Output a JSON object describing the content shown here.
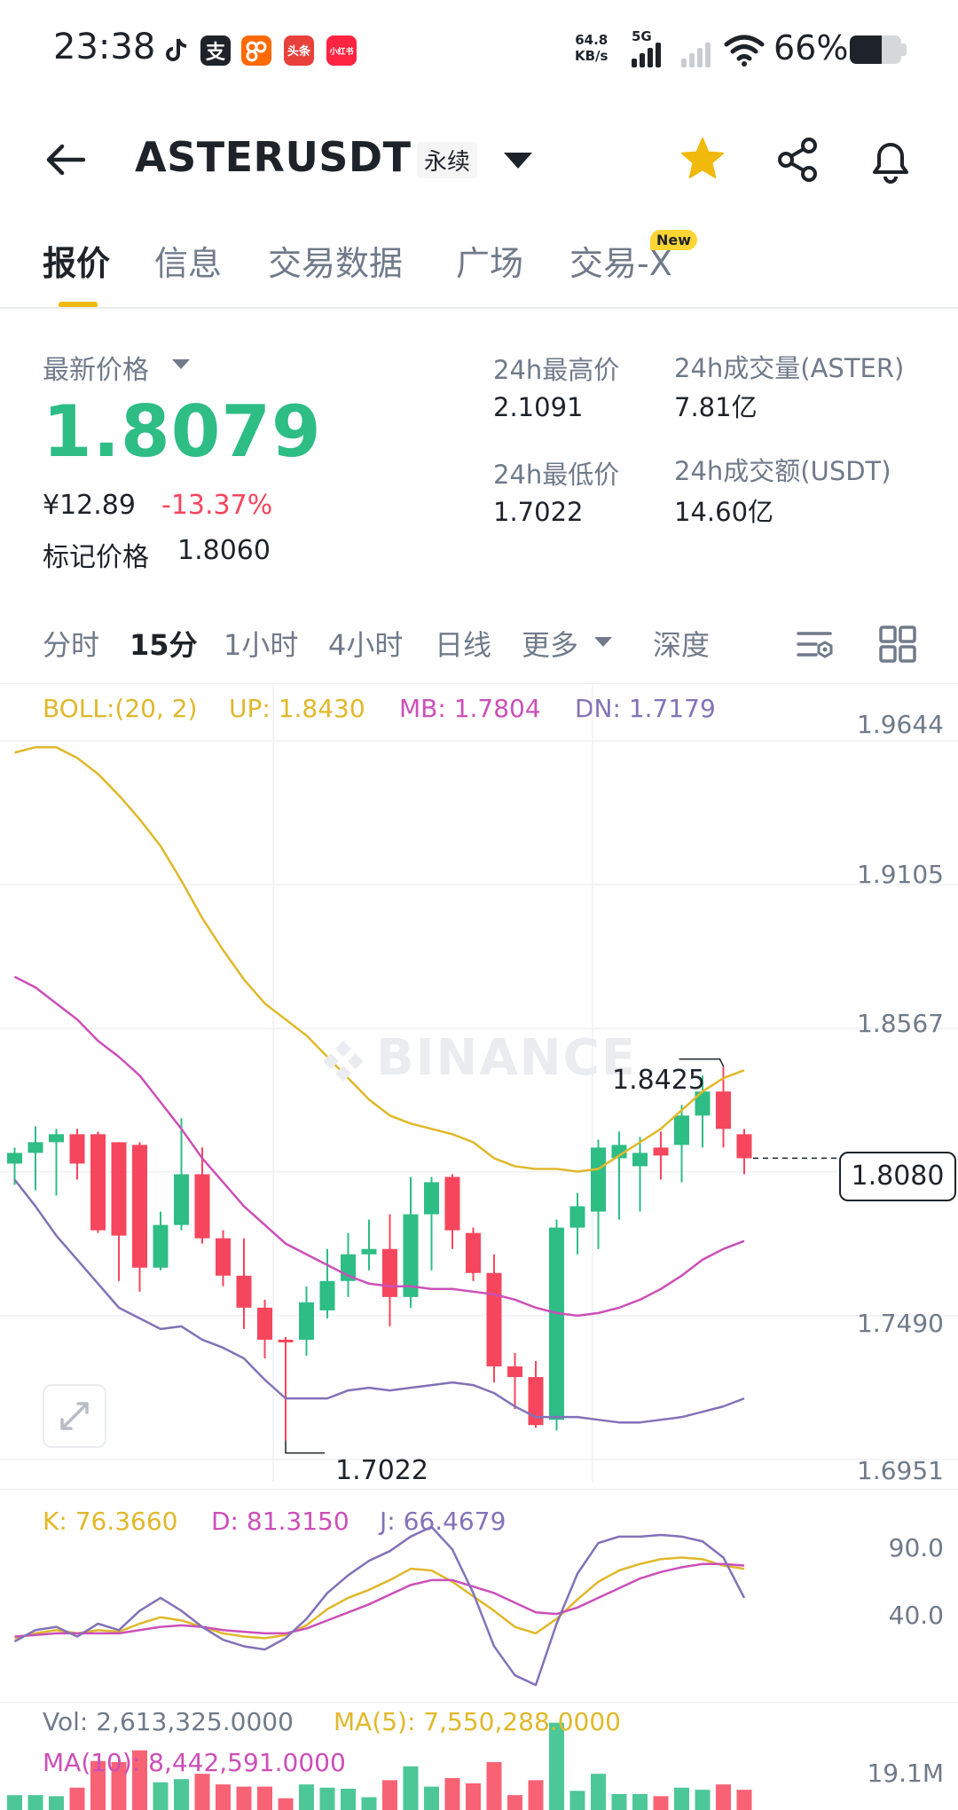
{
  "status_bar": {
    "time": "23:38",
    "net_speed": "64.8",
    "net_unit": "KB/s",
    "signal_label": "5G",
    "battery": "66%"
  },
  "header": {
    "symbol": "ASTERUSDT",
    "contract_type": "永续",
    "icons": [
      "back-arrow-icon",
      "star-icon",
      "share-icon",
      "bell-icon"
    ],
    "star_color": "#f0b90b"
  },
  "tabs": [
    {
      "label": "报价"
    },
    {
      "label": "信息"
    },
    {
      "label": "交易数据"
    },
    {
      "label": "广场"
    },
    {
      "label": "交易-X"
    }
  ],
  "new_badge": "New",
  "price": {
    "latest_label": "最新价格",
    "latest": "1.8079",
    "cny": "¥12.89",
    "change": "-13.37%",
    "mark_label": "标记价格",
    "mark": "1.8060",
    "high_label": "24h最高价",
    "high": "2.1091",
    "low_label": "24h最低价",
    "low": "1.7022",
    "vol_label": "24h成交量(ASTER)",
    "vol": "7.81亿",
    "turnover_label": "24h成交额(USDT)",
    "turnover": "14.60亿"
  },
  "intervals": [
    "分时",
    "15分",
    "1小时",
    "4小时",
    "日线",
    "更多"
  ],
  "depth_label": "深度",
  "indicator": {
    "boll": "BOLL:(20, 2)",
    "up": "UP: 1.8430",
    "mb": "MB: 1.7804",
    "dn": "DN: 1.7179"
  },
  "axis": [
    "1.9644",
    "1.9105",
    "1.8567",
    "1.7490",
    "1.6951"
  ],
  "watermark": "BINANCE",
  "current_price": "1.8080",
  "chart_high_label": "1.8425",
  "chart_low_label": "1.7022",
  "kdj": {
    "k": "K: 76.3660",
    "d": "D: 81.3150",
    "j": "J: 66.4679",
    "axis": [
      "90.0",
      "40.0"
    ]
  },
  "volume": {
    "vol": "Vol: 2,613,325.0000",
    "ma5": "MA(5): 7,550,288.0000",
    "ma10": "MA(10): 8,442,591.0000",
    "axis": "19.1M"
  },
  "colors": {
    "up": "#2ebd85",
    "down": "#f6465d",
    "boll_up": "#e0b82a",
    "boll_mb": "#cc4fb8",
    "boll_dn": "#8272b8"
  },
  "chart_data": {
    "type": "candlestick",
    "price_axis": [
      1.9644,
      1.9105,
      1.8567,
      1.749,
      1.6951
    ],
    "ylim": [
      1.6951,
      1.9644
    ],
    "candles": [
      {
        "o": 1.806,
        "c": 1.81,
        "h": 1.812,
        "l": 1.798
      },
      {
        "o": 1.81,
        "c": 1.814,
        "h": 1.82,
        "l": 1.796
      },
      {
        "o": 1.814,
        "c": 1.817,
        "h": 1.819,
        "l": 1.794
      },
      {
        "o": 1.817,
        "c": 1.806,
        "h": 1.819,
        "l": 1.8
      },
      {
        "o": 1.817,
        "c": 1.781,
        "h": 1.818,
        "l": 1.78
      },
      {
        "o": 1.814,
        "c": 1.779,
        "h": 1.814,
        "l": 1.762
      },
      {
        "o": 1.813,
        "c": 1.767,
        "h": 1.814,
        "l": 1.758
      },
      {
        "o": 1.767,
        "c": 1.783,
        "h": 1.788,
        "l": 1.766
      },
      {
        "o": 1.783,
        "c": 1.802,
        "h": 1.823,
        "l": 1.781
      },
      {
        "o": 1.802,
        "c": 1.778,
        "h": 1.812,
        "l": 1.776
      },
      {
        "o": 1.778,
        "c": 1.764,
        "h": 1.781,
        "l": 1.76
      },
      {
        "o": 1.764,
        "c": 1.752,
        "h": 1.778,
        "l": 1.744
      },
      {
        "o": 1.752,
        "c": 1.74,
        "h": 1.755,
        "l": 1.733
      },
      {
        "o": 1.74,
        "c": 1.739,
        "h": 1.741,
        "l": 1.7022
      },
      {
        "o": 1.74,
        "c": 1.754,
        "h": 1.76,
        "l": 1.734
      },
      {
        "o": 1.751,
        "c": 1.762,
        "h": 1.774,
        "l": 1.748
      },
      {
        "o": 1.762,
        "c": 1.772,
        "h": 1.78,
        "l": 1.756
      },
      {
        "o": 1.772,
        "c": 1.774,
        "h": 1.785,
        "l": 1.766
      },
      {
        "o": 1.774,
        "c": 1.756,
        "h": 1.787,
        "l": 1.745
      },
      {
        "o": 1.756,
        "c": 1.787,
        "h": 1.801,
        "l": 1.752
      },
      {
        "o": 1.787,
        "c": 1.799,
        "h": 1.801,
        "l": 1.766
      },
      {
        "o": 1.801,
        "c": 1.781,
        "h": 1.802,
        "l": 1.774
      },
      {
        "o": 1.78,
        "c": 1.765,
        "h": 1.782,
        "l": 1.762
      },
      {
        "o": 1.765,
        "c": 1.73,
        "h": 1.772,
        "l": 1.724
      },
      {
        "o": 1.73,
        "c": 1.726,
        "h": 1.735,
        "l": 1.714
      },
      {
        "o": 1.726,
        "c": 1.708,
        "h": 1.732,
        "l": 1.707
      },
      {
        "o": 1.71,
        "c": 1.782,
        "h": 1.785,
        "l": 1.706
      },
      {
        "o": 1.782,
        "c": 1.79,
        "h": 1.795,
        "l": 1.772
      },
      {
        "o": 1.788,
        "c": 1.812,
        "h": 1.815,
        "l": 1.774
      },
      {
        "o": 1.808,
        "c": 1.813,
        "h": 1.818,
        "l": 1.785
      },
      {
        "o": 1.805,
        "c": 1.81,
        "h": 1.816,
        "l": 1.788
      },
      {
        "o": 1.812,
        "c": 1.809,
        "h": 1.818,
        "l": 1.8
      },
      {
        "o": 1.813,
        "c": 1.824,
        "h": 1.828,
        "l": 1.799
      },
      {
        "o": 1.824,
        "c": 1.833,
        "h": 1.839,
        "l": 1.812
      },
      {
        "o": 1.833,
        "c": 1.819,
        "h": 1.8425,
        "l": 1.812
      },
      {
        "o": 1.817,
        "c": 1.808,
        "h": 1.819,
        "l": 1.802
      }
    ],
    "boll_up": [
      1.96,
      1.962,
      1.962,
      1.958,
      1.952,
      1.944,
      1.935,
      1.925,
      1.912,
      1.898,
      1.886,
      1.875,
      1.866,
      1.86,
      1.854,
      1.846,
      1.838,
      1.83,
      1.824,
      1.821,
      1.819,
      1.817,
      1.814,
      1.808,
      1.805,
      1.804,
      1.804,
      1.803,
      1.804,
      1.809,
      1.814,
      1.819,
      1.826,
      1.833,
      1.838,
      1.841
    ],
    "boll_mb": [
      1.876,
      1.872,
      1.866,
      1.86,
      1.852,
      1.846,
      1.839,
      1.829,
      1.819,
      1.808,
      1.799,
      1.79,
      1.783,
      1.776,
      1.772,
      1.768,
      1.764,
      1.761,
      1.76,
      1.76,
      1.759,
      1.759,
      1.758,
      1.757,
      1.755,
      1.752,
      1.75,
      1.749,
      1.75,
      1.752,
      1.755,
      1.759,
      1.764,
      1.77,
      1.774,
      1.777
    ],
    "boll_dn": [
      1.8,
      1.79,
      1.779,
      1.77,
      1.761,
      1.752,
      1.748,
      1.744,
      1.745,
      1.74,
      1.737,
      1.733,
      1.725,
      1.718,
      1.718,
      1.718,
      1.721,
      1.722,
      1.721,
      1.722,
      1.723,
      1.724,
      1.723,
      1.72,
      1.715,
      1.711,
      1.711,
      1.711,
      1.71,
      1.709,
      1.709,
      1.71,
      1.711,
      1.713,
      1.715,
      1.718
    ],
    "kdj_k": [
      35,
      38,
      40,
      38,
      40,
      39,
      44,
      48,
      46,
      42,
      38,
      36,
      35,
      37,
      43,
      53,
      60,
      65,
      71,
      78,
      77,
      70,
      61,
      52,
      42,
      38,
      47,
      59,
      70,
      77,
      81,
      84,
      85,
      84,
      80,
      78
    ],
    "kdj_d": [
      36,
      37,
      38,
      38,
      38,
      38,
      40,
      42,
      43,
      42,
      40,
      39,
      38,
      38,
      41,
      46,
      51,
      56,
      62,
      68,
      71,
      71,
      67,
      63,
      57,
      51,
      50,
      54,
      60,
      66,
      72,
      76,
      79,
      81,
      81,
      80
    ],
    "kdj_j": [
      33,
      40,
      42,
      36,
      44,
      40,
      52,
      60,
      52,
      42,
      34,
      30,
      28,
      35,
      47,
      63,
      74,
      83,
      89,
      98,
      104,
      90,
      63,
      30,
      12,
      6,
      44,
      75,
      94,
      98,
      98,
      99,
      98,
      95,
      85,
      60
    ],
    "kdj_axis": [
      90.0,
      40.0
    ]
  }
}
